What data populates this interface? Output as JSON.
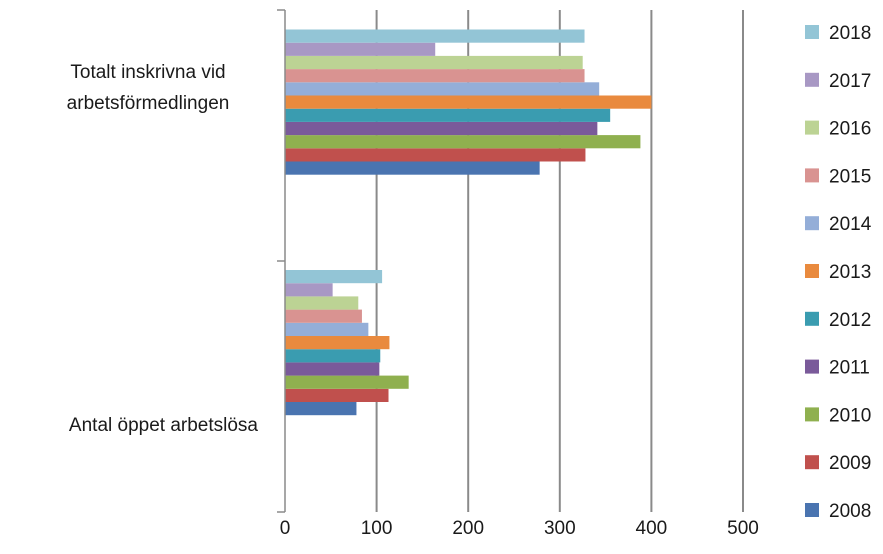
{
  "chart_data": {
    "type": "bar",
    "orientation": "horizontal",
    "categories": [
      "Totalt inskrivna vid\narbetsförmedlingen",
      "Antal öppet arbetslösa"
    ],
    "series": [
      {
        "name": "2008",
        "color": "#4a74b0",
        "values": [
          278,
          78
        ]
      },
      {
        "name": "2009",
        "color": "#c0504d",
        "values": [
          328,
          113
        ]
      },
      {
        "name": "2010",
        "color": "#8fb04f",
        "values": [
          388,
          135
        ]
      },
      {
        "name": "2011",
        "color": "#7a5a9a",
        "values": [
          341,
          103
        ]
      },
      {
        "name": "2012",
        "color": "#3a9cb0",
        "values": [
          355,
          104
        ]
      },
      {
        "name": "2013",
        "color": "#e98a3e",
        "values": [
          400,
          114
        ]
      },
      {
        "name": "2014",
        "color": "#94aed8",
        "values": [
          343,
          91
        ]
      },
      {
        "name": "2015",
        "color": "#d99391",
        "values": [
          327,
          84
        ]
      },
      {
        "name": "2016",
        "color": "#bcd394",
        "values": [
          325,
          80
        ]
      },
      {
        "name": "2017",
        "color": "#a898c4",
        "values": [
          164,
          52
        ]
      },
      {
        "name": "2018",
        "color": "#93c5d6",
        "values": [
          327,
          106
        ]
      }
    ],
    "xticks": [
      "0",
      "100",
      "200",
      "300",
      "400",
      "500"
    ],
    "xlim": [
      0,
      500
    ],
    "grid": "vertical",
    "legend": "right",
    "title": "",
    "xlabel": "",
    "ylabel": ""
  }
}
